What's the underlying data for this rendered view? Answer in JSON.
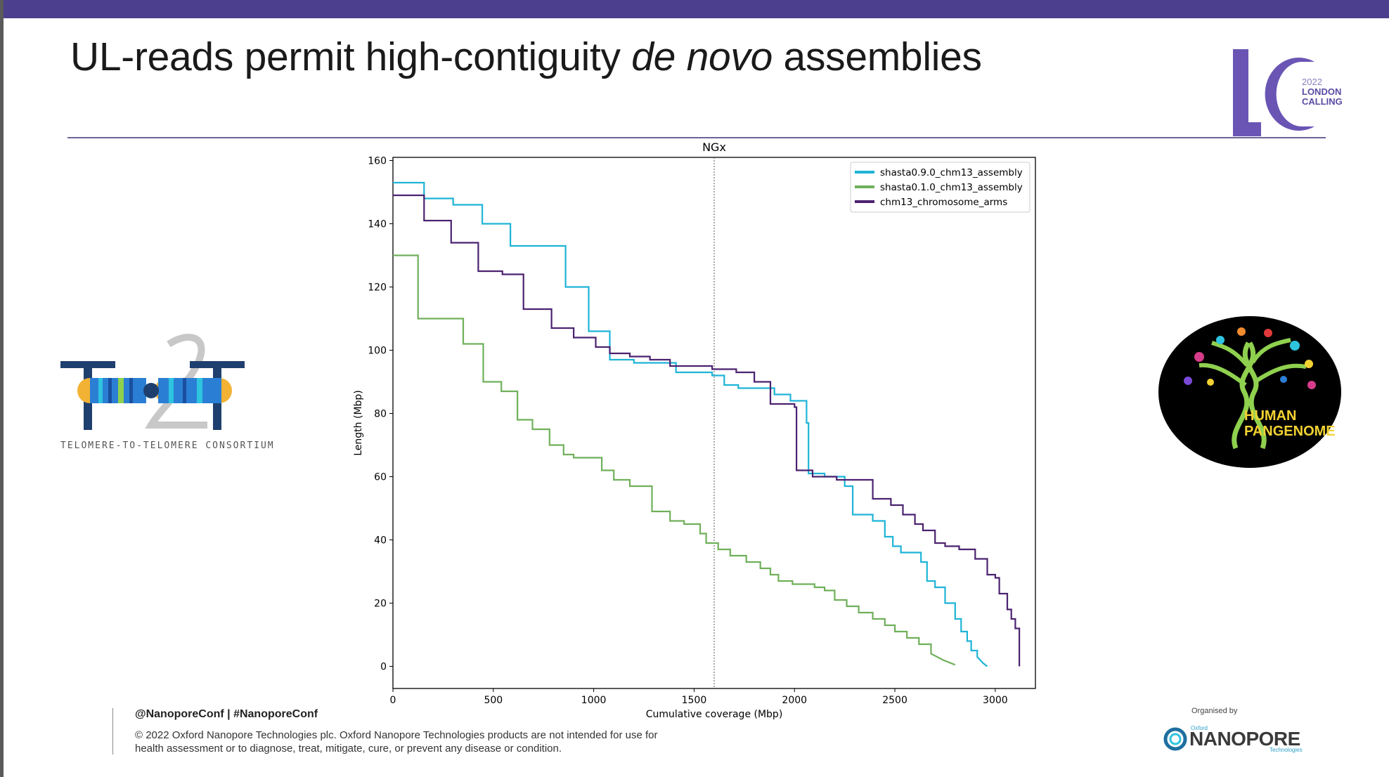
{
  "slide": {
    "title_part1": "UL-reads permit high-contiguity ",
    "title_italic": "de novo",
    "title_part2": " assemblies",
    "handle": "@NanoporeConf | #NanoporeConf",
    "copyright": "© 2022 Oxford Nanopore Technologies plc. Oxford Nanopore Technologies products are not intended for use for health assessment or to diagnose, treat, mitigate, cure, or prevent any disease or condition.",
    "organised_by": "Organised by"
  },
  "logos": {
    "lc_year": "2022",
    "lc_line1": "LONDON",
    "lc_line2": "CALLING",
    "t2t_caption": "TELOMERE-TO-TELOMERE CONSORTIUM",
    "pangenome_line1": "HUMAN",
    "pangenome_line2": "PANGENOME",
    "ont_brand": "NANOPORE",
    "ont_oxford": "Oxford",
    "ont_tech": "Technologies"
  },
  "colors": {
    "topbar": "#4c3f8d",
    "accent": "#6a55b5",
    "series_cyan": "#1eb4d6",
    "series_green": "#6fb05a",
    "series_purple": "#4b2270"
  },
  "chart_data": {
    "type": "line",
    "title": "NGx",
    "xlabel": "Cumulative coverage (Mbp)",
    "ylabel": "Length (Mbp)",
    "xlim": [
      0,
      3200
    ],
    "ylim": [
      -7,
      161
    ],
    "xticks": [
      0,
      500,
      1000,
      1500,
      2000,
      2500,
      3000
    ],
    "yticks": [
      0,
      20,
      40,
      60,
      80,
      100,
      120,
      140,
      160
    ],
    "vline_x": 1600,
    "legend_position": "top-right",
    "grid": false,
    "series": [
      {
        "name": "shasta0.9.0_chm13_assembly",
        "color": "#1eb4d6",
        "points": [
          [
            0,
            153
          ],
          [
            155,
            153
          ],
          [
            155,
            148
          ],
          [
            300,
            148
          ],
          [
            300,
            146
          ],
          [
            445,
            146
          ],
          [
            445,
            140
          ],
          [
            585,
            140
          ],
          [
            585,
            133
          ],
          [
            860,
            133
          ],
          [
            860,
            120
          ],
          [
            975,
            120
          ],
          [
            975,
            106
          ],
          [
            1080,
            106
          ],
          [
            1080,
            97
          ],
          [
            1200,
            97
          ],
          [
            1200,
            96
          ],
          [
            1410,
            96
          ],
          [
            1410,
            93
          ],
          [
            1590,
            93
          ],
          [
            1590,
            92
          ],
          [
            1650,
            92
          ],
          [
            1650,
            89
          ],
          [
            1720,
            89
          ],
          [
            1720,
            88
          ],
          [
            1830,
            88
          ],
          [
            1830,
            88
          ],
          [
            1900,
            88
          ],
          [
            1900,
            86
          ],
          [
            1980,
            86
          ],
          [
            1980,
            84
          ],
          [
            2060,
            84
          ],
          [
            2060,
            77
          ],
          [
            2070,
            77
          ],
          [
            2070,
            61
          ],
          [
            2150,
            61
          ],
          [
            2150,
            60
          ],
          [
            2250,
            60
          ],
          [
            2250,
            57
          ],
          [
            2290,
            57
          ],
          [
            2290,
            48
          ],
          [
            2390,
            48
          ],
          [
            2390,
            46
          ],
          [
            2450,
            46
          ],
          [
            2450,
            41
          ],
          [
            2490,
            41
          ],
          [
            2490,
            38
          ],
          [
            2530,
            38
          ],
          [
            2530,
            36
          ],
          [
            2630,
            36
          ],
          [
            2630,
            33
          ],
          [
            2660,
            33
          ],
          [
            2660,
            27
          ],
          [
            2700,
            27
          ],
          [
            2700,
            25
          ],
          [
            2750,
            25
          ],
          [
            2750,
            20
          ],
          [
            2800,
            20
          ],
          [
            2800,
            15
          ],
          [
            2830,
            15
          ],
          [
            2830,
            11
          ],
          [
            2860,
            11
          ],
          [
            2860,
            8
          ],
          [
            2880,
            8
          ],
          [
            2880,
            5
          ],
          [
            2910,
            5
          ],
          [
            2910,
            3
          ],
          [
            2940,
            1
          ],
          [
            2960,
            0
          ]
        ]
      },
      {
        "name": "shasta0.1.0_chm13_assembly",
        "color": "#6fb05a",
        "points": [
          [
            0,
            130
          ],
          [
            125,
            130
          ],
          [
            125,
            110
          ],
          [
            350,
            110
          ],
          [
            350,
            102
          ],
          [
            450,
            102
          ],
          [
            450,
            90
          ],
          [
            540,
            90
          ],
          [
            540,
            87
          ],
          [
            620,
            87
          ],
          [
            620,
            78
          ],
          [
            695,
            78
          ],
          [
            695,
            75
          ],
          [
            780,
            75
          ],
          [
            780,
            70
          ],
          [
            850,
            70
          ],
          [
            850,
            67
          ],
          [
            900,
            67
          ],
          [
            900,
            66
          ],
          [
            1040,
            66
          ],
          [
            1040,
            62
          ],
          [
            1100,
            62
          ],
          [
            1100,
            59
          ],
          [
            1180,
            59
          ],
          [
            1180,
            57
          ],
          [
            1290,
            57
          ],
          [
            1290,
            49
          ],
          [
            1380,
            49
          ],
          [
            1380,
            46
          ],
          [
            1450,
            46
          ],
          [
            1450,
            45
          ],
          [
            1530,
            45
          ],
          [
            1530,
            42
          ],
          [
            1560,
            42
          ],
          [
            1560,
            39
          ],
          [
            1620,
            39
          ],
          [
            1620,
            37
          ],
          [
            1680,
            37
          ],
          [
            1680,
            35
          ],
          [
            1760,
            35
          ],
          [
            1760,
            33
          ],
          [
            1830,
            33
          ],
          [
            1830,
            31
          ],
          [
            1880,
            31
          ],
          [
            1880,
            29
          ],
          [
            1920,
            29
          ],
          [
            1920,
            27
          ],
          [
            1990,
            27
          ],
          [
            1990,
            26
          ],
          [
            2100,
            26
          ],
          [
            2100,
            25
          ],
          [
            2150,
            25
          ],
          [
            2150,
            24
          ],
          [
            2200,
            24
          ],
          [
            2200,
            21
          ],
          [
            2260,
            21
          ],
          [
            2260,
            19
          ],
          [
            2320,
            19
          ],
          [
            2320,
            17
          ],
          [
            2390,
            17
          ],
          [
            2390,
            15
          ],
          [
            2450,
            15
          ],
          [
            2450,
            13
          ],
          [
            2500,
            13
          ],
          [
            2500,
            11
          ],
          [
            2560,
            11
          ],
          [
            2560,
            9
          ],
          [
            2620,
            9
          ],
          [
            2620,
            7
          ],
          [
            2680,
            7
          ],
          [
            2680,
            4
          ],
          [
            2740,
            2
          ],
          [
            2800,
            0.5
          ]
        ]
      },
      {
        "name": "chm13_chromosome_arms",
        "color": "#4b2270",
        "points": [
          [
            0,
            149
          ],
          [
            155,
            149
          ],
          [
            155,
            141
          ],
          [
            290,
            141
          ],
          [
            290,
            134
          ],
          [
            425,
            134
          ],
          [
            425,
            125
          ],
          [
            545,
            125
          ],
          [
            545,
            124
          ],
          [
            650,
            124
          ],
          [
            650,
            113
          ],
          [
            790,
            113
          ],
          [
            790,
            107
          ],
          [
            900,
            107
          ],
          [
            900,
            104
          ],
          [
            1010,
            104
          ],
          [
            1010,
            101
          ],
          [
            1080,
            101
          ],
          [
            1080,
            99
          ],
          [
            1180,
            99
          ],
          [
            1180,
            98
          ],
          [
            1280,
            98
          ],
          [
            1280,
            97
          ],
          [
            1380,
            97
          ],
          [
            1380,
            95
          ],
          [
            1590,
            95
          ],
          [
            1590,
            94
          ],
          [
            1710,
            94
          ],
          [
            1710,
            93
          ],
          [
            1800,
            93
          ],
          [
            1800,
            90
          ],
          [
            1880,
            90
          ],
          [
            1880,
            83
          ],
          [
            2000,
            83
          ],
          [
            2000,
            82
          ],
          [
            2010,
            82
          ],
          [
            2010,
            62
          ],
          [
            2090,
            62
          ],
          [
            2090,
            60
          ],
          [
            2210,
            60
          ],
          [
            2210,
            59
          ],
          [
            2390,
            59
          ],
          [
            2390,
            53
          ],
          [
            2480,
            53
          ],
          [
            2480,
            51
          ],
          [
            2540,
            51
          ],
          [
            2540,
            48
          ],
          [
            2600,
            48
          ],
          [
            2600,
            45
          ],
          [
            2640,
            45
          ],
          [
            2640,
            43
          ],
          [
            2700,
            43
          ],
          [
            2700,
            39
          ],
          [
            2750,
            39
          ],
          [
            2750,
            38
          ],
          [
            2820,
            38
          ],
          [
            2820,
            37
          ],
          [
            2900,
            37
          ],
          [
            2900,
            34
          ],
          [
            2960,
            34
          ],
          [
            2960,
            29
          ],
          [
            3000,
            29
          ],
          [
            3000,
            28
          ],
          [
            3020,
            28
          ],
          [
            3020,
            23
          ],
          [
            3060,
            23
          ],
          [
            3060,
            18
          ],
          [
            3080,
            18
          ],
          [
            3080,
            15
          ],
          [
            3100,
            15
          ],
          [
            3100,
            12
          ],
          [
            3120,
            12
          ],
          [
            3120,
            0
          ]
        ]
      }
    ]
  }
}
